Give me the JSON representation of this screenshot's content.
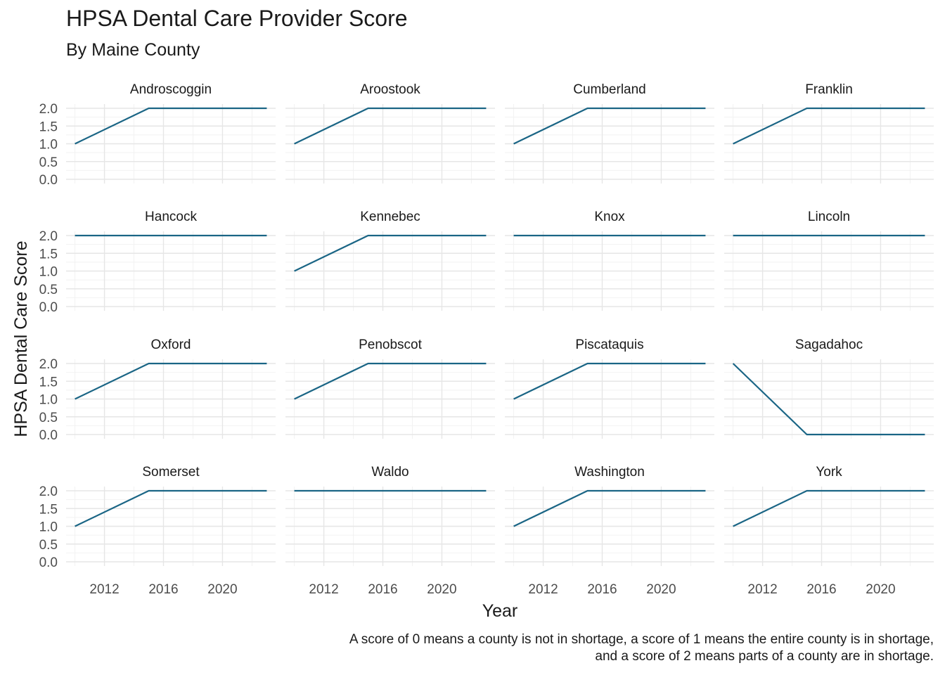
{
  "title": "HPSA Dental Care Provider Score",
  "subtitle": "By Maine County",
  "caption": {
    "line1": "A score of 0 means a county is not in shortage, a score of 1 means the entire county is in shortage,",
    "line2": "and a score of 2 means parts of a county are in shortage."
  },
  "colors": {
    "line": "#1a6585",
    "grid_major": "#e6e6e6",
    "grid_minor": "#f2f2f2",
    "text": "#1a1a1a",
    "tick_text": "#4d4d4d"
  },
  "chart_data": {
    "type": "line",
    "facet": "small-multiples 4x4",
    "xlabel": "Year",
    "ylabel": "HPSA Dental Care Score",
    "xlim": [
      2009.4,
      2023.6
    ],
    "ylim": [
      0,
      2
    ],
    "x_ticks": [
      2012,
      2016,
      2020
    ],
    "y_ticks": [
      "0.0",
      "0.5",
      "1.0",
      "1.5",
      "2.0"
    ],
    "grid": true,
    "panels": [
      {
        "name": "Androscoggin",
        "x": [
          2010,
          2015,
          2023
        ],
        "y": [
          1,
          2,
          2
        ]
      },
      {
        "name": "Aroostook",
        "x": [
          2010,
          2015,
          2023
        ],
        "y": [
          1,
          2,
          2
        ]
      },
      {
        "name": "Cumberland",
        "x": [
          2010,
          2015,
          2023
        ],
        "y": [
          1,
          2,
          2
        ]
      },
      {
        "name": "Franklin",
        "x": [
          2010,
          2015,
          2023
        ],
        "y": [
          1,
          2,
          2
        ]
      },
      {
        "name": "Hancock",
        "x": [
          2010,
          2015,
          2023
        ],
        "y": [
          2,
          2,
          2
        ]
      },
      {
        "name": "Kennebec",
        "x": [
          2010,
          2015,
          2023
        ],
        "y": [
          1,
          2,
          2
        ]
      },
      {
        "name": "Knox",
        "x": [
          2010,
          2015,
          2023
        ],
        "y": [
          2,
          2,
          2
        ]
      },
      {
        "name": "Lincoln",
        "x": [
          2010,
          2015,
          2023
        ],
        "y": [
          2,
          2,
          2
        ]
      },
      {
        "name": "Oxford",
        "x": [
          2010,
          2015,
          2023
        ],
        "y": [
          1,
          2,
          2
        ]
      },
      {
        "name": "Penobscot",
        "x": [
          2010,
          2015,
          2023
        ],
        "y": [
          1,
          2,
          2
        ]
      },
      {
        "name": "Piscataquis",
        "x": [
          2010,
          2015,
          2023
        ],
        "y": [
          1,
          2,
          2
        ]
      },
      {
        "name": "Sagadahoc",
        "x": [
          2010,
          2015,
          2023
        ],
        "y": [
          2,
          0,
          0
        ]
      },
      {
        "name": "Somerset",
        "x": [
          2010,
          2015,
          2023
        ],
        "y": [
          1,
          2,
          2
        ]
      },
      {
        "name": "Waldo",
        "x": [
          2010,
          2015,
          2023
        ],
        "y": [
          2,
          2,
          2
        ]
      },
      {
        "name": "Washington",
        "x": [
          2010,
          2015,
          2023
        ],
        "y": [
          1,
          2,
          2
        ]
      },
      {
        "name": "York",
        "x": [
          2010,
          2015,
          2023
        ],
        "y": [
          1,
          2,
          2
        ]
      }
    ]
  }
}
